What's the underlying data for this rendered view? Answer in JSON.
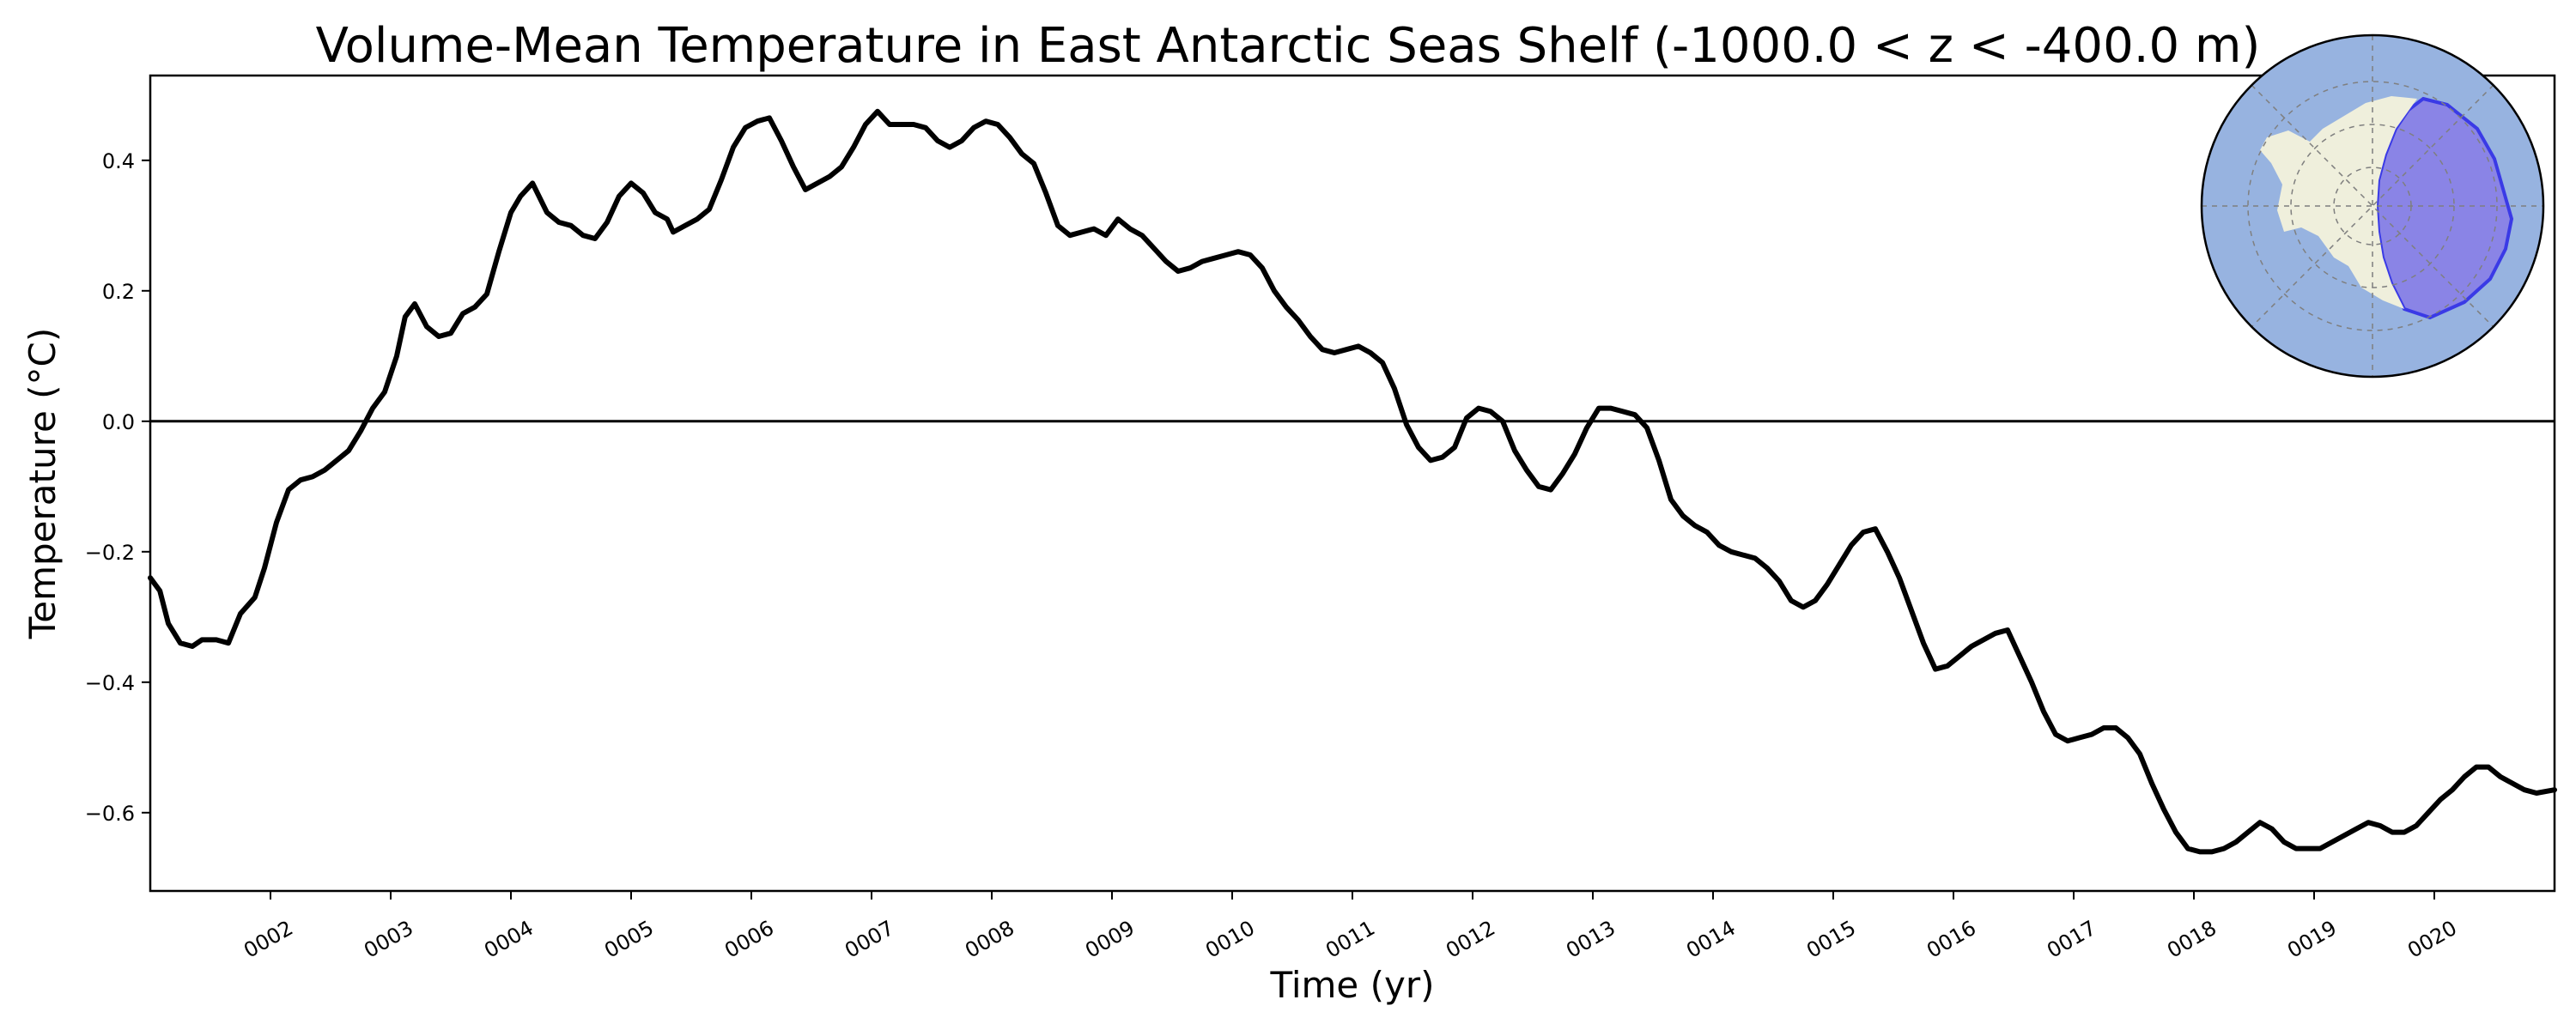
{
  "chart_data": {
    "type": "line",
    "title": "Volume-Mean Temperature in East Antarctic Seas Shelf (-1000.0 < z < -400.0 m)",
    "xlabel": "Time (yr)",
    "ylabel": "Temperature (°C)",
    "xlim": [
      1.0,
      21.0
    ],
    "ylim": [
      -0.72,
      0.53
    ],
    "zero_line": true,
    "grid": false,
    "legend": "none",
    "x_ticks": [
      {
        "value": 2,
        "label": "0002"
      },
      {
        "value": 3,
        "label": "0003"
      },
      {
        "value": 4,
        "label": "0004"
      },
      {
        "value": 5,
        "label": "0005"
      },
      {
        "value": 6,
        "label": "0006"
      },
      {
        "value": 7,
        "label": "0007"
      },
      {
        "value": 8,
        "label": "0008"
      },
      {
        "value": 9,
        "label": "0009"
      },
      {
        "value": 10,
        "label": "0010"
      },
      {
        "value": 11,
        "label": "0011"
      },
      {
        "value": 12,
        "label": "0012"
      },
      {
        "value": 13,
        "label": "0013"
      },
      {
        "value": 14,
        "label": "0014"
      },
      {
        "value": 15,
        "label": "0015"
      },
      {
        "value": 16,
        "label": "0016"
      },
      {
        "value": 17,
        "label": "0017"
      },
      {
        "value": 18,
        "label": "0018"
      },
      {
        "value": 19,
        "label": "0019"
      },
      {
        "value": 20,
        "label": "0020"
      }
    ],
    "y_ticks": [
      {
        "value": -0.6,
        "label": "−0.6"
      },
      {
        "value": -0.4,
        "label": "−0.4"
      },
      {
        "value": -0.2,
        "label": "−0.2"
      },
      {
        "value": 0.0,
        "label": "0.0"
      },
      {
        "value": 0.2,
        "label": "0.2"
      },
      {
        "value": 0.4,
        "label": "0.4"
      }
    ],
    "series": [
      {
        "name": "East Antarctic Seas Shelf",
        "color": "#000000",
        "x": [
          1.0,
          1.08,
          1.15,
          1.25,
          1.35,
          1.43,
          1.55,
          1.65,
          1.75,
          1.87,
          1.95,
          2.05,
          2.15,
          2.25,
          2.35,
          2.45,
          2.55,
          2.65,
          2.75,
          2.85,
          2.95,
          3.05,
          3.12,
          3.2,
          3.3,
          3.4,
          3.5,
          3.6,
          3.7,
          3.8,
          3.9,
          4.0,
          4.08,
          4.18,
          4.3,
          4.4,
          4.5,
          4.6,
          4.7,
          4.8,
          4.9,
          5.0,
          5.1,
          5.2,
          5.3,
          5.35,
          5.45,
          5.55,
          5.65,
          5.75,
          5.85,
          5.95,
          6.05,
          6.15,
          6.25,
          6.35,
          6.45,
          6.55,
          6.65,
          6.75,
          6.85,
          6.95,
          7.05,
          7.15,
          7.25,
          7.35,
          7.45,
          7.55,
          7.65,
          7.75,
          7.85,
          7.95,
          8.05,
          8.15,
          8.25,
          8.35,
          8.45,
          8.55,
          8.65,
          8.75,
          8.85,
          8.95,
          9.05,
          9.15,
          9.25,
          9.35,
          9.45,
          9.55,
          9.65,
          9.75,
          9.85,
          9.95,
          10.05,
          10.15,
          10.25,
          10.35,
          10.45,
          10.55,
          10.65,
          10.75,
          10.85,
          10.95,
          11.05,
          11.15,
          11.25,
          11.35,
          11.45,
          11.55,
          11.65,
          11.75,
          11.85,
          11.95,
          12.05,
          12.15,
          12.25,
          12.35,
          12.45,
          12.55,
          12.65,
          12.75,
          12.85,
          12.95,
          13.05,
          13.15,
          13.25,
          13.35,
          13.45,
          13.55,
          13.65,
          13.75,
          13.85,
          13.95,
          14.05,
          14.15,
          14.25,
          14.35,
          14.45,
          14.55,
          14.65,
          14.75,
          14.85,
          14.95,
          15.05,
          15.15,
          15.25,
          15.35,
          15.45,
          15.55,
          15.65,
          15.75,
          15.85,
          15.95,
          16.05,
          16.15,
          16.25,
          16.35,
          16.45,
          16.55,
          16.65,
          16.75,
          16.85,
          16.95,
          17.05,
          17.15,
          17.25,
          17.35,
          17.45,
          17.55,
          17.65,
          17.75,
          17.85,
          17.95,
          18.05,
          18.15,
          18.25,
          18.35,
          18.45,
          18.55,
          18.65,
          18.75,
          18.85,
          18.95,
          19.05,
          19.15,
          19.25,
          19.35,
          19.45,
          19.55,
          19.65,
          19.75,
          19.85,
          19.95,
          20.05,
          20.15,
          20.25,
          20.35,
          20.45,
          20.55,
          20.65,
          20.75,
          20.85,
          21.0
        ],
        "y": [
          -0.24,
          -0.26,
          -0.31,
          -0.34,
          -0.345,
          -0.335,
          -0.335,
          -0.34,
          -0.295,
          -0.27,
          -0.225,
          -0.155,
          -0.105,
          -0.09,
          -0.085,
          -0.075,
          -0.06,
          -0.045,
          -0.015,
          0.02,
          0.045,
          0.1,
          0.16,
          0.18,
          0.145,
          0.13,
          0.135,
          0.165,
          0.175,
          0.195,
          0.26,
          0.32,
          0.345,
          0.365,
          0.32,
          0.305,
          0.3,
          0.285,
          0.28,
          0.305,
          0.345,
          0.365,
          0.35,
          0.32,
          0.31,
          0.29,
          0.3,
          0.31,
          0.325,
          0.37,
          0.42,
          0.45,
          0.46,
          0.465,
          0.43,
          0.39,
          0.355,
          0.365,
          0.375,
          0.39,
          0.42,
          0.455,
          0.475,
          0.455,
          0.455,
          0.455,
          0.45,
          0.43,
          0.42,
          0.43,
          0.45,
          0.46,
          0.455,
          0.435,
          0.41,
          0.395,
          0.35,
          0.3,
          0.285,
          0.29,
          0.295,
          0.285,
          0.31,
          0.295,
          0.285,
          0.265,
          0.245,
          0.23,
          0.235,
          0.245,
          0.25,
          0.255,
          0.26,
          0.255,
          0.235,
          0.2,
          0.175,
          0.155,
          0.13,
          0.11,
          0.105,
          0.11,
          0.115,
          0.105,
          0.09,
          0.05,
          -0.005,
          -0.04,
          -0.06,
          -0.055,
          -0.04,
          0.005,
          0.02,
          0.015,
          0.0,
          -0.045,
          -0.075,
          -0.1,
          -0.105,
          -0.08,
          -0.05,
          -0.01,
          0.02,
          0.02,
          0.015,
          0.01,
          -0.01,
          -0.06,
          -0.12,
          -0.145,
          -0.16,
          -0.17,
          -0.19,
          -0.2,
          -0.205,
          -0.21,
          -0.225,
          -0.245,
          -0.275,
          -0.285,
          -0.275,
          -0.25,
          -0.22,
          -0.19,
          -0.17,
          -0.165,
          -0.2,
          -0.24,
          -0.29,
          -0.34,
          -0.38,
          -0.375,
          -0.36,
          -0.345,
          -0.335,
          -0.325,
          -0.32,
          -0.36,
          -0.4,
          -0.445,
          -0.48,
          -0.49,
          -0.485,
          -0.48,
          -0.47,
          -0.47,
          -0.485,
          -0.51,
          -0.555,
          -0.595,
          -0.63,
          -0.655,
          -0.66,
          -0.66,
          -0.655,
          -0.645,
          -0.63,
          -0.615,
          -0.625,
          -0.645,
          -0.655,
          -0.655,
          -0.655,
          -0.645,
          -0.635,
          -0.625,
          -0.615,
          -0.62,
          -0.63,
          -0.63,
          -0.62,
          -0.6,
          -0.58,
          -0.565,
          -0.545,
          -0.53,
          -0.53,
          -0.545,
          -0.555,
          -0.565,
          -0.57,
          -0.565
        ]
      }
    ],
    "inset": {
      "description_icon": "antarctic-map-icon",
      "ocean_color": "#97b3e0",
      "land_color": "#efefdc",
      "region_color": "#8a84e6",
      "region_edge_color": "#3a3ae6"
    }
  }
}
